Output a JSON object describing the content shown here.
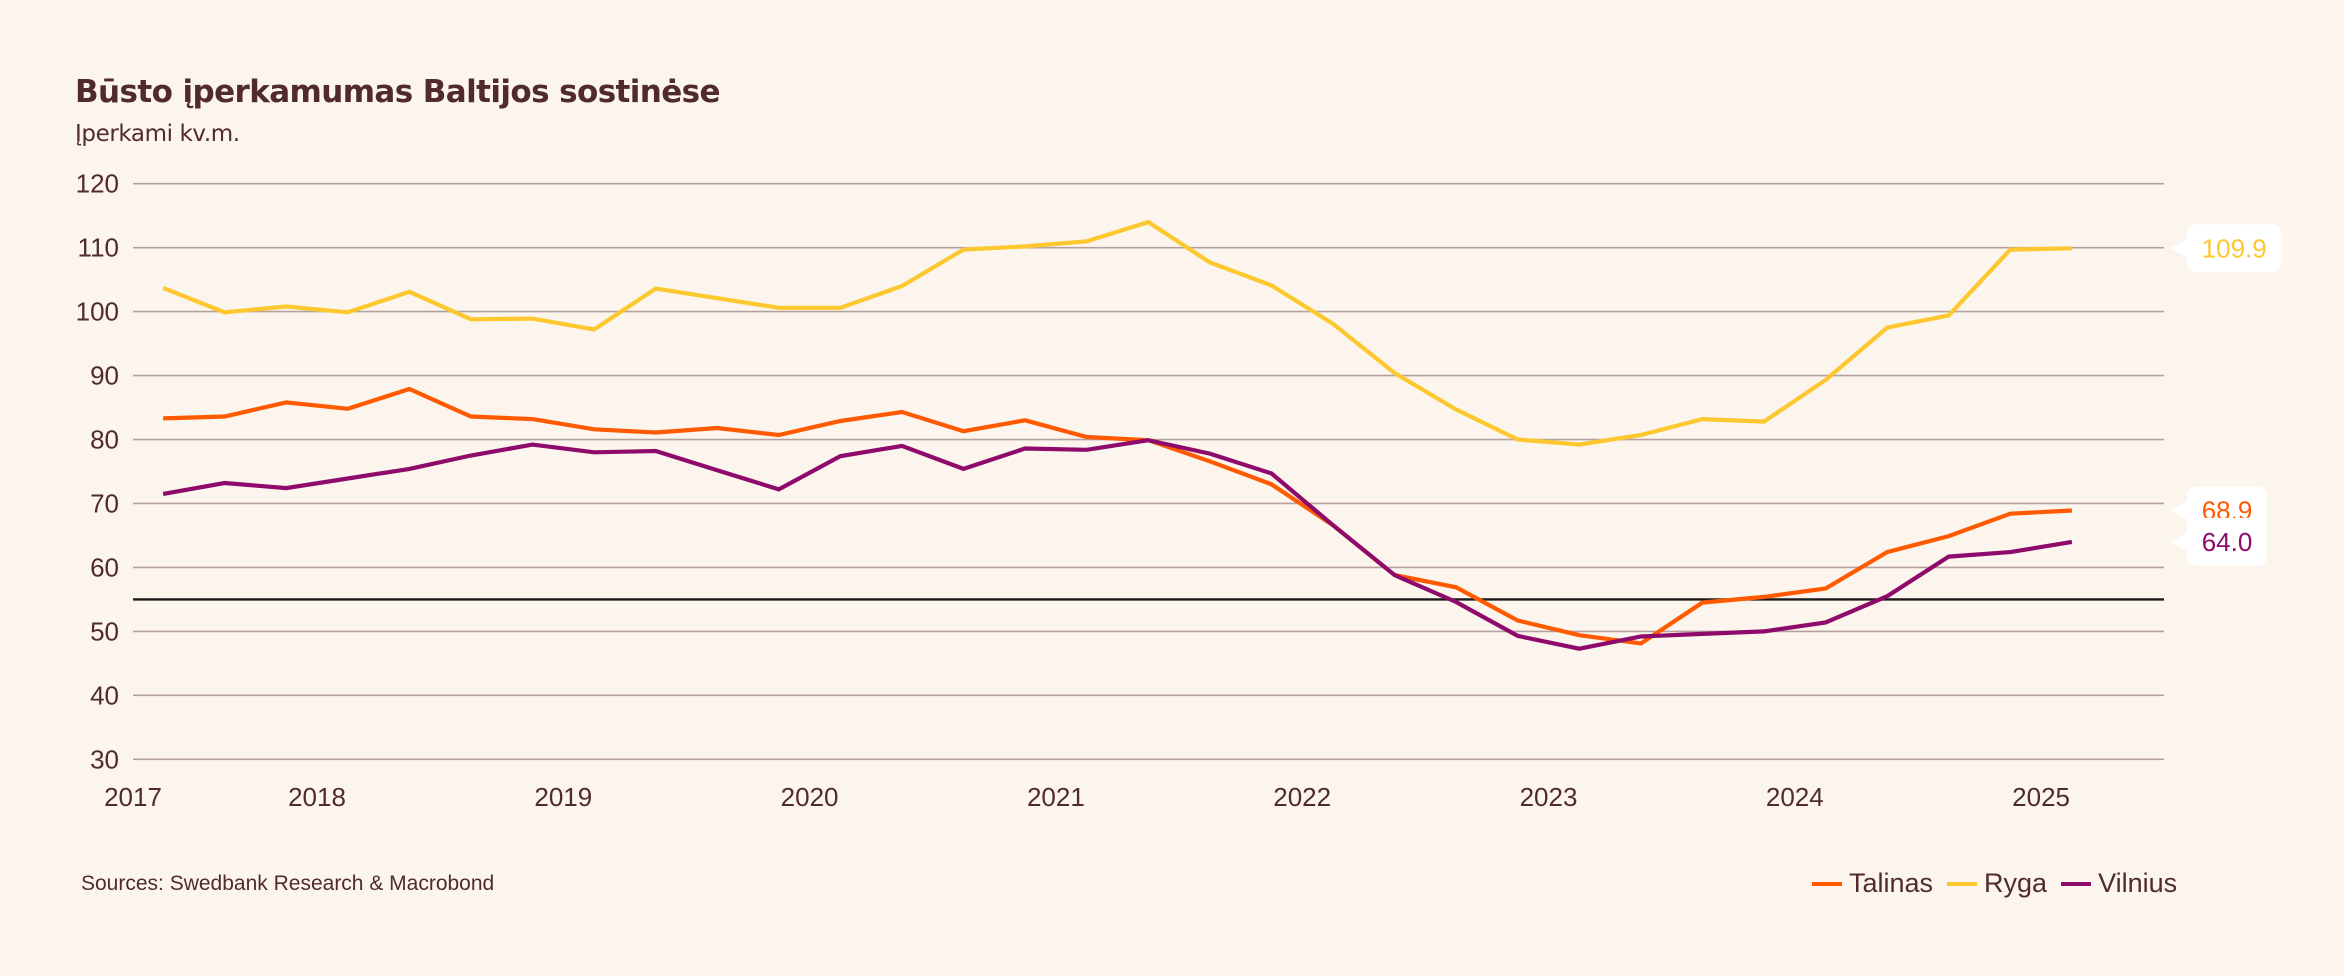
{
  "header": {
    "title": "Būsto įperkamumas Baltijos sostinėse",
    "subtitle": "Įperkami kv.m."
  },
  "footer": {
    "source": "Sources: Swedbank Research & Macrobond"
  },
  "chart_data": {
    "type": "line",
    "title": "Būsto įperkamumas Baltijos sostinėse",
    "subtitle": "Įperkami kv.m.",
    "xlabel": "",
    "ylabel": "Įperkami kv.m.",
    "ylim": [
      30,
      120
    ],
    "yticks": [
      30,
      40,
      50,
      60,
      70,
      80,
      90,
      100,
      110,
      120
    ],
    "ytick_labels": [
      "30",
      "40",
      "50",
      "60",
      "70",
      "80",
      "90",
      "100",
      "110",
      "120"
    ],
    "xlim": [
      2017.0,
      2025.5
    ],
    "xticks": [
      2017,
      2018,
      2019,
      2020,
      2021,
      2022,
      2023,
      2024,
      2025
    ],
    "xtick_labels": [
      "2017",
      "2018",
      "2019",
      "2020",
      "2021",
      "2022",
      "2023",
      "2024",
      "2025"
    ],
    "grid": true,
    "reference_line": {
      "y": 55,
      "color": "#1A1A1A"
    },
    "legend_position": "bottom-right",
    "x": [
      2017.375,
      2017.625,
      2017.875,
      2018.125,
      2018.375,
      2018.625,
      2018.875,
      2019.125,
      2019.375,
      2019.625,
      2019.875,
      2020.125,
      2020.375,
      2020.625,
      2020.875,
      2021.125,
      2021.375,
      2021.625,
      2021.875,
      2022.125,
      2022.375,
      2022.625,
      2022.875,
      2023.125,
      2023.375,
      2023.625,
      2023.875,
      2024.125,
      2024.375,
      2024.625,
      2024.875,
      2025.125
    ],
    "series": [
      {
        "name": "Talinas",
        "color": "#FF5A00",
        "values": [
          83.3,
          83.6,
          85.8,
          84.8,
          87.9,
          83.6,
          83.2,
          81.6,
          81.1,
          81.8,
          80.7,
          82.9,
          84.3,
          81.3,
          83.0,
          80.4,
          79.9,
          76.6,
          73.0,
          66.6,
          58.8,
          56.9,
          51.7,
          49.4,
          48.1,
          54.5,
          55.4,
          56.7,
          62.4,
          64.9,
          68.4,
          68.9
        ],
        "last_label": "68.9"
      },
      {
        "name": "Ryga",
        "color": "#FDC82F",
        "values": [
          103.7,
          99.9,
          100.8,
          99.9,
          103.1,
          98.8,
          98.9,
          97.2,
          103.6,
          102.1,
          100.6,
          100.6,
          104.0,
          109.7,
          110.2,
          111.0,
          114.0,
          107.7,
          104.1,
          98.1,
          90.4,
          84.7,
          80.0,
          79.2,
          80.7,
          83.2,
          82.8,
          89.3,
          97.5,
          99.4,
          109.7,
          109.9
        ],
        "last_label": "109.9"
      },
      {
        "name": "Vilnius",
        "color": "#8E0B6B",
        "values": [
          71.5,
          73.2,
          72.4,
          73.9,
          75.4,
          77.5,
          79.2,
          78.0,
          78.2,
          75.2,
          72.2,
          77.4,
          79.0,
          75.4,
          78.6,
          78.4,
          79.9,
          77.8,
          74.7,
          66.6,
          58.8,
          54.6,
          49.3,
          47.3,
          49.2,
          49.6,
          50.0,
          51.4,
          55.5,
          61.7,
          62.4,
          64.0
        ],
        "last_label": "64.0"
      }
    ]
  }
}
